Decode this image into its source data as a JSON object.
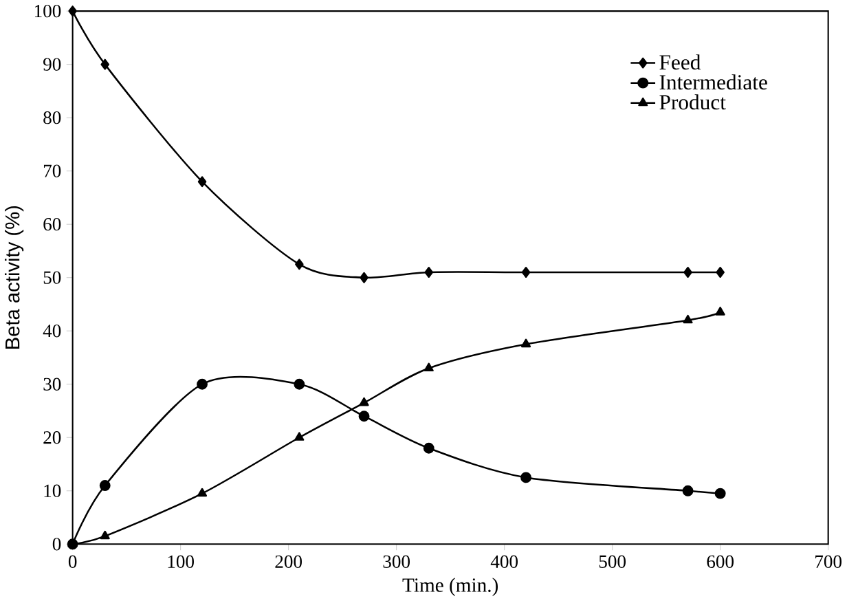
{
  "chart_data": {
    "type": "line",
    "xlabel": "Time (min.)",
    "ylabel": "Beta activity (%)",
    "x": [
      0,
      30,
      120,
      210,
      270,
      330,
      420,
      570,
      600
    ],
    "xlim": [
      0,
      700
    ],
    "xticks": [
      0,
      100,
      200,
      300,
      400,
      500,
      600,
      700
    ],
    "ylim": [
      0,
      100
    ],
    "yticks": [
      0,
      10,
      20,
      30,
      40,
      50,
      60,
      70,
      80,
      90,
      100
    ],
    "grid": false,
    "legend": "top right",
    "series": [
      {
        "name": "Feed",
        "color": "#000000",
        "marker": "diamond",
        "values": [
          100,
          90,
          68,
          52.5,
          50,
          51,
          51,
          51,
          51
        ]
      },
      {
        "name": "Intermediate",
        "color": "#000000",
        "marker": "circle",
        "values": [
          0,
          11,
          30,
          30,
          24,
          18,
          12.5,
          10,
          9.5
        ]
      },
      {
        "name": "Product",
        "color": "#000000",
        "marker": "triangle",
        "values": [
          0,
          1.5,
          9.5,
          20,
          26.5,
          33,
          37.5,
          42,
          43.5
        ]
      }
    ]
  }
}
